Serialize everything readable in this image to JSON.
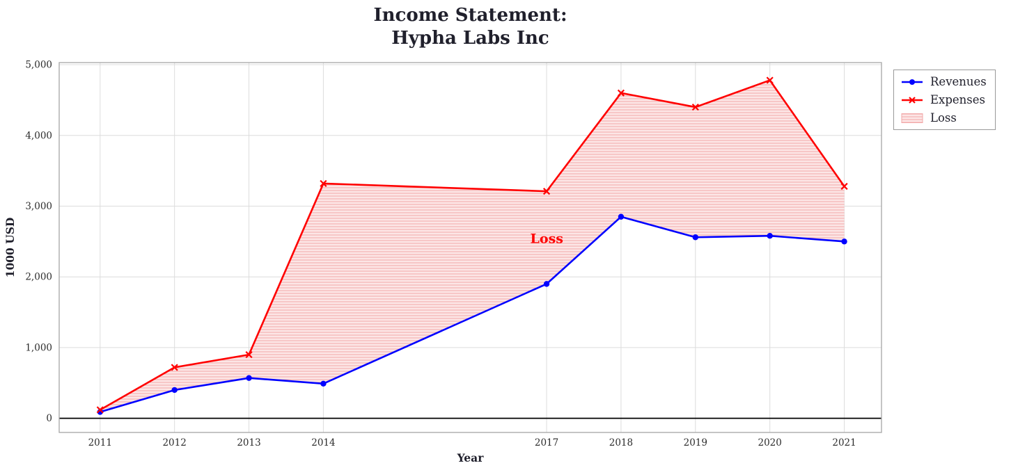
{
  "title": {
    "line1": "Income Statement:",
    "line2": "Hypha Labs Inc"
  },
  "chart_data": {
    "type": "line",
    "title": "Income Statement: Hypha Labs Inc",
    "xlabel": "Year",
    "ylabel": "1000 USD",
    "x": [
      2011,
      2012,
      2013,
      2014,
      2017,
      2018,
      2019,
      2020,
      2021
    ],
    "series": [
      {
        "name": "Revenues",
        "color": "#0000ff",
        "marker": "circle",
        "values": [
          90,
          400,
          570,
          490,
          1900,
          2850,
          2560,
          2580,
          2500
        ]
      },
      {
        "name": "Expenses",
        "color": "#ff0000",
        "marker": "x",
        "values": [
          120,
          720,
          900,
          3320,
          3210,
          4600,
          4400,
          4780,
          3280
        ]
      }
    ],
    "loss_fill": {
      "label": "Loss",
      "base_color": "#fce6e6",
      "hatch_color": "#f2a8a8"
    },
    "annotation": {
      "text": "Loss",
      "x": 2016.78,
      "y": 2480,
      "color": "#ff0000"
    },
    "xlim": [
      2010.45,
      2021.5
    ],
    "ylim": [
      -200,
      5030
    ],
    "xticks": [
      2011,
      2012,
      2013,
      2014,
      2017,
      2018,
      2019,
      2020,
      2021
    ],
    "yticks": [
      0,
      1000,
      2000,
      3000,
      4000,
      5000
    ],
    "ytick_labels": [
      "0",
      "1,000",
      "2,000",
      "3,000",
      "4,000",
      "5,000"
    ],
    "grid": true,
    "zero_line": true,
    "legend": {
      "position": "upper-right-outside",
      "entries": [
        "Revenues",
        "Expenses",
        "Loss"
      ]
    }
  }
}
